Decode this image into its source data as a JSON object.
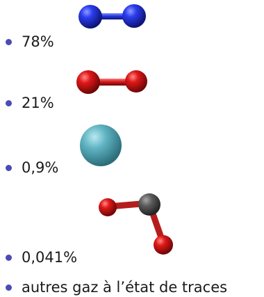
{
  "list": {
    "items": [
      {
        "label": "78%",
        "molecule_icon": "n2-molecule-icon",
        "atom_colors": [
          "#1f2fd1"
        ]
      },
      {
        "label": "21%",
        "molecule_icon": "o2-molecule-icon",
        "atom_colors": [
          "#d11616"
        ]
      },
      {
        "label": "0,9%",
        "molecule_icon": "argon-atom-icon",
        "atom_colors": [
          "#5fb3c2"
        ]
      },
      {
        "label": "0,041%",
        "molecule_icon": "co2-molecule-icon",
        "atom_colors": [
          "#d11616",
          "#5a5a5a"
        ]
      },
      {
        "label": "autres gaz à l’état de traces"
      }
    ],
    "bullet_color": "#4a4ab8"
  }
}
